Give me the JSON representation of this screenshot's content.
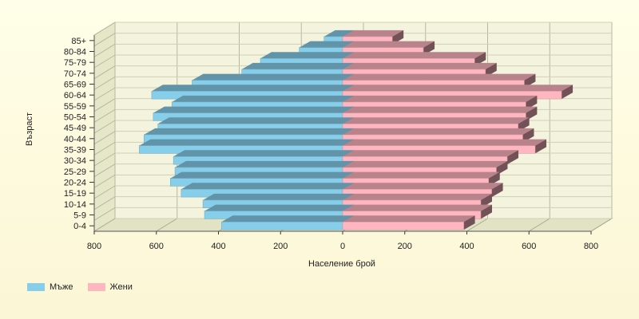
{
  "chart_data": {
    "type": "bar",
    "orientation": "horizontal-pyramid",
    "categories": [
      "0-4",
      "5-9",
      "10-14",
      "15-19",
      "20-24",
      "25-29",
      "30-34",
      "35-39",
      "40-44",
      "45-49",
      "50-54",
      "55-59",
      "60-64",
      "65-69",
      "70-74",
      "75-79",
      "80-84",
      "85+"
    ],
    "series": [
      {
        "name": "Мъже",
        "color": "#87ceeb",
        "values": [
          390,
          445,
          450,
          520,
          555,
          540,
          545,
          655,
          640,
          595,
          610,
          550,
          615,
          485,
          325,
          265,
          140,
          60
        ]
      },
      {
        "name": "Жени",
        "color": "#ffb6c1",
        "values": [
          390,
          445,
          445,
          480,
          470,
          495,
          530,
          620,
          580,
          565,
          590,
          590,
          705,
          585,
          460,
          425,
          260,
          160
        ]
      }
    ],
    "xlabel": "Население брой",
    "ylabel": "Възраст",
    "xlim": [
      -800,
      800
    ],
    "xticks": [
      -800,
      -600,
      -400,
      -200,
      0,
      200,
      400,
      600,
      800
    ],
    "xtick_labels": [
      "800",
      "600",
      "400",
      "200",
      "0",
      "200",
      "400",
      "600",
      "800"
    ],
    "grid": true,
    "legend_position": "bottom-left",
    "three_d": true
  }
}
